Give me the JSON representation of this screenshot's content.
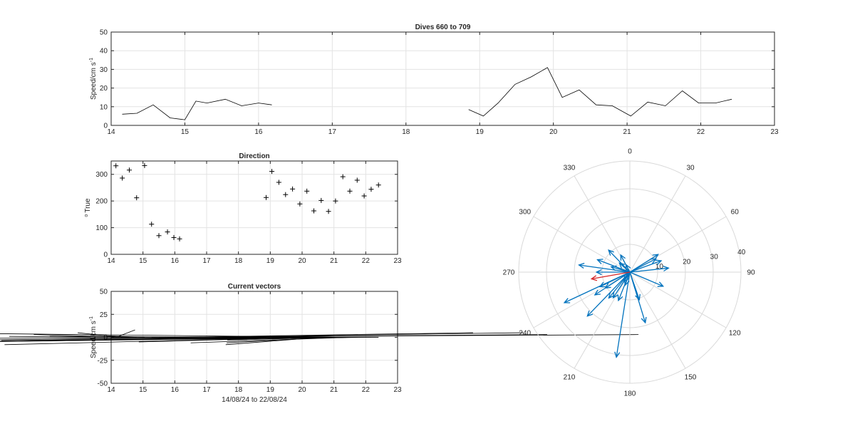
{
  "chart_data": [
    {
      "id": "speed",
      "type": "line",
      "title": "Dives 660 to 709",
      "xlabel": "",
      "ylabel": "Speed/cm s",
      "ylabel_superscript": "-1",
      "xlim": [
        14,
        23
      ],
      "ylim": [
        0,
        50
      ],
      "xticks": [
        14,
        15,
        16,
        17,
        18,
        19,
        20,
        21,
        22,
        23
      ],
      "yticks": [
        0,
        10,
        20,
        30,
        40,
        50
      ],
      "grid": true,
      "segments": [
        {
          "x": [
            14.15,
            14.35,
            14.57,
            14.8,
            15.0,
            15.15,
            15.3,
            15.55,
            15.77,
            16.0,
            16.18
          ],
          "y": [
            6,
            6.5,
            11,
            4,
            3,
            13,
            12,
            14,
            10.5,
            12,
            11
          ]
        },
        {
          "x": [
            18.85,
            19.05,
            19.25,
            19.48,
            19.7,
            19.92,
            20.12,
            20.35,
            20.58,
            20.8,
            21.05,
            21.28,
            21.52,
            21.75,
            21.97,
            22.2,
            22.42
          ],
          "y": [
            8.5,
            5,
            12,
            22,
            26,
            31,
            15,
            19,
            11,
            10.5,
            5,
            12.5,
            10.5,
            18.5,
            12,
            12,
            14
          ]
        }
      ]
    },
    {
      "id": "direction",
      "type": "scatter",
      "title": "Direction",
      "xlabel": "",
      "ylabel": "True",
      "ylabel_prefix": "o",
      "xlim": [
        14,
        23
      ],
      "ylim": [
        0,
        350
      ],
      "xticks": [
        14,
        15,
        16,
        17,
        18,
        19,
        20,
        21,
        22,
        23
      ],
      "yticks": [
        0,
        100,
        200,
        300
      ],
      "grid": true,
      "marker": "+",
      "x": [
        14.15,
        14.35,
        14.57,
        14.8,
        15.05,
        15.27,
        15.5,
        15.77,
        15.97,
        16.15,
        18.87,
        19.05,
        19.27,
        19.48,
        19.7,
        19.93,
        20.15,
        20.37,
        20.6,
        20.83,
        21.05,
        21.28,
        21.5,
        21.73,
        21.95,
        22.17,
        22.4
      ],
      "y": [
        332,
        286,
        316,
        212,
        333,
        113,
        70,
        84,
        63,
        58,
        213,
        311,
        270,
        224,
        245,
        189,
        237,
        163,
        202,
        161,
        200,
        291,
        237,
        278,
        219,
        244,
        260
      ]
    },
    {
      "id": "vectors",
      "type": "line",
      "title": "Current vectors",
      "xlabel": "14/08/24 to 22/08/24",
      "ylabel": "Speed/cm s",
      "ylabel_superscript": "-1",
      "xlim": [
        14,
        23
      ],
      "ylim": [
        -50,
        50
      ],
      "xticks": [
        14,
        15,
        16,
        17,
        18,
        19,
        20,
        21,
        22,
        23
      ],
      "yticks": [
        -50,
        -25,
        0,
        25,
        50
      ],
      "grid": true,
      "baseline_x": [
        14,
        22.4
      ],
      "sticks": [
        {
          "t": 14.15,
          "u": 0.6,
          "v": 8.0
        },
        {
          "t": 14.35,
          "u": -1.4,
          "v": 5.0
        },
        {
          "t": 14.57,
          "u": -3.0,
          "v": 3.0
        },
        {
          "t": 14.8,
          "u": -4.0,
          "v": 1.0
        },
        {
          "t": 15.05,
          "u": -1.7,
          "v": 2.5
        },
        {
          "t": 15.27,
          "u": 3.0,
          "v": -2.5
        },
        {
          "t": 15.5,
          "u": 12.2,
          "v": 3.0
        },
        {
          "t": 15.77,
          "u": 14.8,
          "v": 3.0
        },
        {
          "t": 15.97,
          "u": 9.4,
          "v": 5.0
        },
        {
          "t": 16.15,
          "u": 10.8,
          "v": 5.0
        },
        {
          "t": 18.87,
          "u": -6.8,
          "v": 1.0
        },
        {
          "t": 19.05,
          "u": 2.7,
          "v": 3.0
        },
        {
          "t": 19.27,
          "u": -2.0,
          "v": -0.5
        },
        {
          "t": 19.48,
          "u": -20.0,
          "v": -10.0
        },
        {
          "t": 19.7,
          "u": -28.0,
          "v": -14.0
        },
        {
          "t": 19.93,
          "u": -29.0,
          "v": -8.0
        },
        {
          "t": 20.15,
          "u": -9.5,
          "v": -8.0
        },
        {
          "t": 20.37,
          "u": -5.5,
          "v": -5.0
        },
        {
          "t": 20.6,
          "u": -3.0,
          "v": -8.0
        },
        {
          "t": 20.83,
          "u": -3.2,
          "v": -6.0
        },
        {
          "t": 21.05,
          "u": -3.4,
          "v": -3.0
        },
        {
          "t": 21.28,
          "u": -11.0,
          "v": 4.0
        },
        {
          "t": 21.5,
          "u": -5.0,
          "v": -6.0
        },
        {
          "t": 21.73,
          "u": -18.0,
          "v": -7.0
        },
        {
          "t": 21.95,
          "u": -11.4,
          "v": -3.5
        },
        {
          "t": 22.17,
          "u": -10.0,
          "v": -3.0
        },
        {
          "t": 22.4,
          "u": -12.5,
          "v": -1.0
        }
      ]
    },
    {
      "id": "compass",
      "type": "polar",
      "theta_zero": "top",
      "theta_direction": "clockwise",
      "theta_ticks": [
        0,
        30,
        60,
        90,
        120,
        150,
        180,
        210,
        240,
        270,
        300,
        330
      ],
      "r_ticks": [
        10,
        20,
        30,
        40
      ],
      "rlim": [
        0,
        40
      ],
      "arrow_color": "#0072bd",
      "highlight_color": "#d62728",
      "arrows": [
        {
          "dir": 332,
          "speed": 7
        },
        {
          "dir": 286,
          "speed": 7
        },
        {
          "dir": 316,
          "speed": 11
        },
        {
          "dir": 212,
          "speed": 4
        },
        {
          "dir": 333,
          "speed": 3
        },
        {
          "dir": 113,
          "speed": 13
        },
        {
          "dir": 70,
          "speed": 12
        },
        {
          "dir": 84,
          "speed": 14
        },
        {
          "dir": 63,
          "speed": 10.5
        },
        {
          "dir": 58,
          "speed": 12
        },
        {
          "dir": 213,
          "speed": 11
        },
        {
          "dir": 311,
          "speed": 5
        },
        {
          "dir": 270,
          "speed": 12
        },
        {
          "dir": 224,
          "speed": 22
        },
        {
          "dir": 245,
          "speed": 26
        },
        {
          "dir": 189,
          "speed": 31
        },
        {
          "dir": 237,
          "speed": 15
        },
        {
          "dir": 163,
          "speed": 19
        },
        {
          "dir": 202,
          "speed": 11
        },
        {
          "dir": 161,
          "speed": 10.5
        },
        {
          "dir": 200,
          "speed": 5
        },
        {
          "dir": 291,
          "speed": 12.5
        },
        {
          "dir": 237,
          "speed": 10.5
        },
        {
          "dir": 278,
          "speed": 18.5
        },
        {
          "dir": 219,
          "speed": 12
        },
        {
          "dir": 244,
          "speed": 12
        },
        {
          "dir": 260,
          "speed": 14,
          "highlight": true
        }
      ]
    }
  ]
}
